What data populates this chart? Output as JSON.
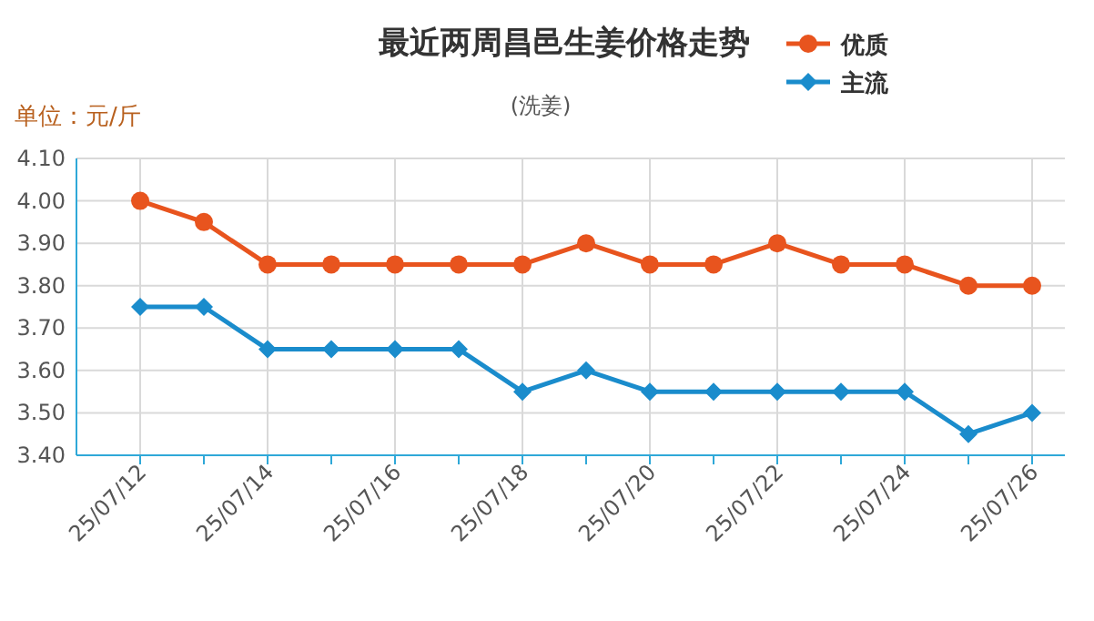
{
  "chart_data": {
    "type": "line",
    "title": "最近两周昌邑生姜价格走势",
    "subtitle": "(洗姜)",
    "annotations": [
      "单位：元/斤"
    ],
    "categories": [
      "25/07/12",
      null,
      "25/07/14",
      null,
      "25/07/16",
      null,
      "25/07/18",
      null,
      "25/07/20",
      null,
      "25/07/22",
      null,
      "25/07/24",
      null,
      "25/07/26"
    ],
    "series": [
      {
        "name": "优质",
        "color": "#e8541e",
        "marker": "circle",
        "values": [
          4.0,
          3.95,
          3.85,
          3.85,
          3.85,
          3.85,
          3.85,
          3.9,
          3.85,
          3.85,
          3.9,
          3.85,
          3.85,
          3.8,
          3.8
        ]
      },
      {
        "name": "主流",
        "color": "#1a8ccc",
        "marker": "diamond",
        "values": [
          3.75,
          3.75,
          3.65,
          3.65,
          3.65,
          3.65,
          3.55,
          3.6,
          3.55,
          3.55,
          3.55,
          3.55,
          3.55,
          3.45,
          3.5
        ]
      }
    ],
    "ylim": [
      3.4,
      4.1
    ],
    "yticks": [
      {
        "value": 3.4,
        "label": "3.40"
      },
      {
        "value": 3.5,
        "label": "3.50"
      },
      {
        "value": 3.6,
        "label": "3.60"
      },
      {
        "value": 3.7,
        "label": "3.70"
      },
      {
        "value": 3.8,
        "label": "3.80"
      },
      {
        "value": 3.9,
        "label": "3.90"
      },
      {
        "value": 4.0,
        "label": "4.00"
      },
      {
        "value": 4.1,
        "label": "4.10"
      }
    ],
    "grid": true,
    "legend": "top right",
    "line_style": "solid"
  }
}
